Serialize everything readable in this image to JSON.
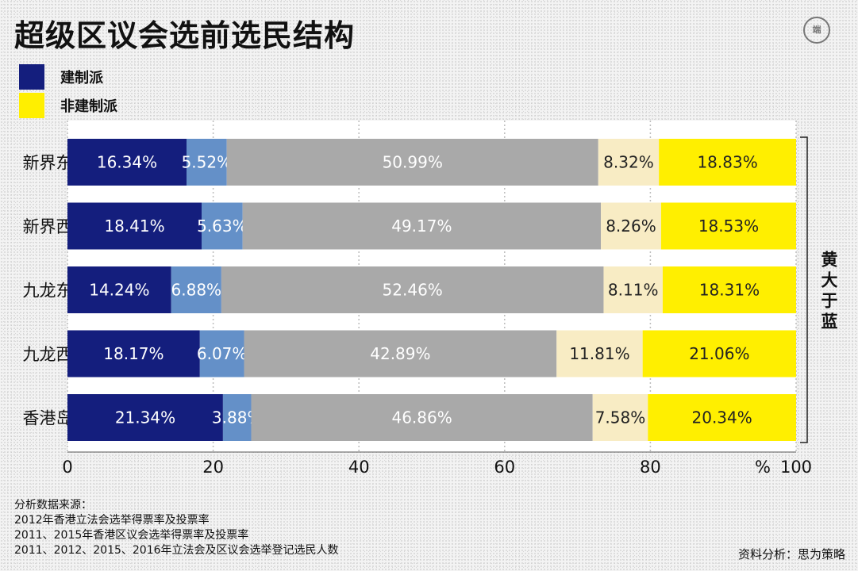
{
  "title": "超级区议会选前选民结构",
  "logo_text": "端",
  "legend": [
    {
      "label": "建制派",
      "color": "#141e7d"
    },
    {
      "label": "非建制派",
      "color": "#ffef00"
    }
  ],
  "chart_data": {
    "type": "bar",
    "orientation": "horizontal",
    "stacked": true,
    "categories": [
      "新界东",
      "新界西",
      "九龙东",
      "九龙西",
      "香港岛"
    ],
    "series": [
      {
        "values": [
          16.34,
          18.41,
          14.24,
          18.17,
          21.34
        ],
        "color": "#141e7d",
        "label_color": "#ffffff"
      },
      {
        "values": [
          5.52,
          5.63,
          6.88,
          6.07,
          3.88
        ],
        "color": "#6490c8",
        "label_color": "#ffffff"
      },
      {
        "values": [
          50.99,
          49.17,
          52.46,
          42.89,
          46.86
        ],
        "color": "#a9a9a9",
        "label_color": "#ffffff"
      },
      {
        "values": [
          8.32,
          8.26,
          8.11,
          11.81,
          7.58
        ],
        "color": "#f8ecc4",
        "label_color": "#222222"
      },
      {
        "values": [
          18.83,
          18.53,
          18.31,
          21.06,
          20.34
        ],
        "color": "#ffef00",
        "label_color": "#222222"
      }
    ],
    "xlim": [
      0,
      100
    ],
    "xticks": [
      0,
      20,
      40,
      60,
      80,
      100
    ],
    "unit_label": "%",
    "bracket_label": "黄大于蓝",
    "grid": true
  },
  "footer_lines": [
    "分析数据来源：",
    "2012年香港立法会选举得票率及投票率",
    "2011、2015年香港区议会选举得票率及投票率",
    "2011、2012、2015、2016年立法会及区议会选举登记选民人数"
  ],
  "credit": "资料分析：思为策略"
}
